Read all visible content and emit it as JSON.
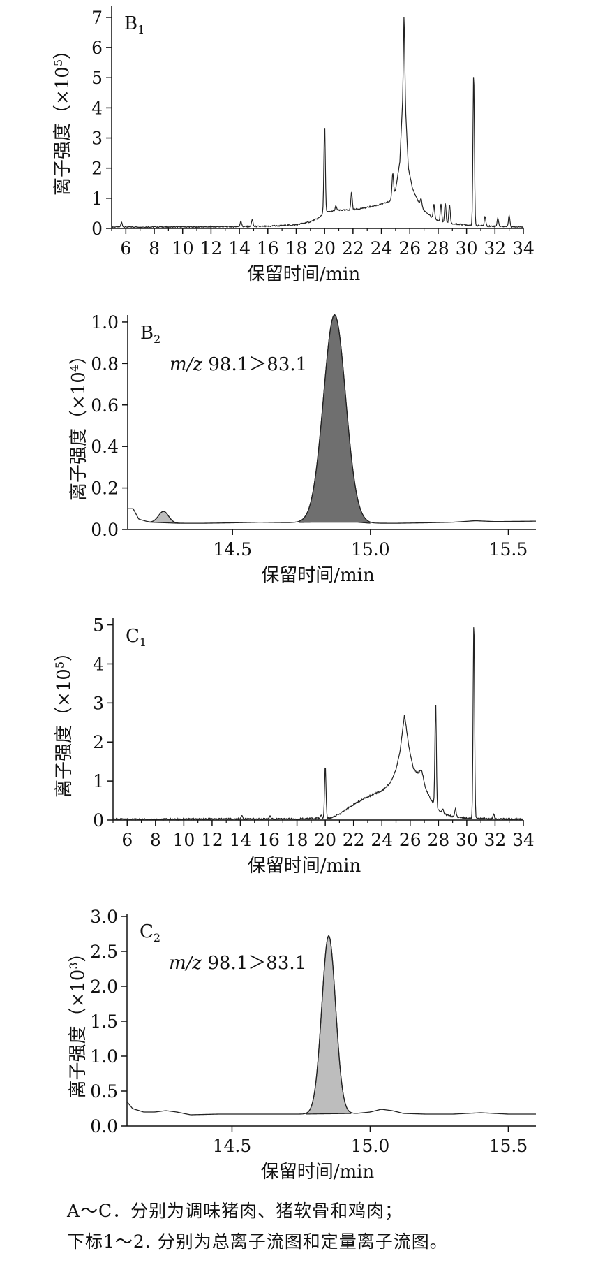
{
  "chart_data": [
    {
      "id": "B1",
      "type": "line",
      "panel_label": {
        "main": "B",
        "sub": "1"
      },
      "annotation": "",
      "xlabel": "保留时间/min",
      "ylabel": "离子强度（×10",
      "ylabel_exp": "5",
      "ylabel_tail": "）",
      "xlim": [
        5,
        34
      ],
      "ylim": [
        0,
        7.3
      ],
      "xticks": [
        6,
        8,
        10,
        12,
        14,
        16,
        18,
        20,
        22,
        24,
        26,
        28,
        30,
        32,
        34
      ],
      "yticks": [
        0,
        1,
        2,
        3,
        4,
        5,
        6,
        7
      ],
      "tick_decimals": {
        "x": 0,
        "y": 0
      },
      "fill": "none",
      "baseline": [
        [
          5.0,
          0.05
        ],
        [
          6.0,
          0.05
        ],
        [
          10,
          0.05
        ],
        [
          14,
          0.06
        ],
        [
          16,
          0.07
        ],
        [
          18,
          0.12
        ],
        [
          19,
          0.22
        ],
        [
          19.6,
          0.35
        ],
        [
          19.9,
          0.5
        ],
        [
          20.2,
          0.55
        ],
        [
          21,
          0.6
        ],
        [
          22,
          0.62
        ],
        [
          23,
          0.7
        ],
        [
          24,
          0.8
        ],
        [
          24.6,
          0.9
        ],
        [
          25.0,
          1.3
        ],
        [
          25.3,
          2.2
        ],
        [
          25.5,
          4.3
        ],
        [
          25.6,
          7.3
        ],
        [
          25.7,
          4.0
        ],
        [
          25.9,
          2.0
        ],
        [
          26.2,
          1.3
        ],
        [
          26.6,
          0.9
        ],
        [
          27.0,
          0.6
        ],
        [
          27.6,
          0.35
        ],
        [
          28.2,
          0.22
        ],
        [
          29,
          0.15
        ],
        [
          30,
          0.12
        ],
        [
          31,
          0.09
        ],
        [
          32,
          0.07
        ],
        [
          33,
          0.06
        ],
        [
          34,
          0.05
        ]
      ],
      "spikes": [
        [
          5.7,
          0.2
        ],
        [
          14.1,
          0.25
        ],
        [
          14.9,
          0.3
        ],
        [
          16.4,
          0.1
        ],
        [
          19.8,
          0.4
        ],
        [
          20.0,
          3.45
        ],
        [
          20.8,
          0.75
        ],
        [
          21.9,
          1.2
        ],
        [
          24.8,
          1.85
        ],
        [
          26.3,
          1.2
        ],
        [
          26.8,
          1.0
        ],
        [
          27.7,
          0.8
        ],
        [
          28.2,
          0.8
        ],
        [
          28.5,
          0.85
        ],
        [
          28.8,
          0.8
        ],
        [
          30.5,
          5.15
        ],
        [
          31.3,
          0.4
        ],
        [
          32.2,
          0.35
        ],
        [
          33.0,
          0.45
        ]
      ]
    },
    {
      "id": "B2",
      "type": "area",
      "panel_label": {
        "main": "B",
        "sub": "2"
      },
      "annotation": "98.1＞83.1",
      "annotation_prefix": "m/z",
      "xlabel": "保留时间/min",
      "ylabel": "离子强度（×10",
      "ylabel_exp": "4",
      "ylabel_tail": "）",
      "xlim": [
        14.12,
        15.6
      ],
      "ylim": [
        0,
        1.02
      ],
      "xticks": [
        14.5,
        15.0,
        15.5
      ],
      "yticks": [
        0,
        0.2,
        0.4,
        0.6,
        0.8,
        1.0
      ],
      "tick_decimals": {
        "x": 1,
        "y": 1
      },
      "fill": "#6f6f6f",
      "baseline": [
        [
          14.12,
          0.1
        ],
        [
          14.14,
          0.1
        ],
        [
          14.16,
          0.05
        ],
        [
          14.2,
          0.035
        ],
        [
          14.3,
          0.03
        ],
        [
          14.4,
          0.03
        ],
        [
          14.5,
          0.032
        ],
        [
          14.6,
          0.035
        ],
        [
          14.7,
          0.033
        ],
        [
          14.8,
          0.035
        ],
        [
          14.95,
          0.035
        ],
        [
          15.0,
          0.03
        ],
        [
          15.1,
          0.03
        ],
        [
          15.2,
          0.032
        ],
        [
          15.3,
          0.035
        ],
        [
          15.38,
          0.042
        ],
        [
          15.45,
          0.038
        ],
        [
          15.6,
          0.04
        ]
      ],
      "peaks": [
        {
          "center": 14.87,
          "height": 1.0,
          "width": 0.04,
          "fill": "#6f6f6f"
        },
        {
          "center": 14.25,
          "height": 0.055,
          "width": 0.018,
          "fill": "#bdbdbd"
        }
      ]
    },
    {
      "id": "C1",
      "type": "line",
      "panel_label": {
        "main": "C",
        "sub": "1"
      },
      "annotation": "",
      "xlabel": "保留时间/min",
      "ylabel": "离子强度（×10",
      "ylabel_exp": "5",
      "ylabel_tail": "）",
      "xlim": [
        5,
        34
      ],
      "ylim": [
        0,
        5.1
      ],
      "xticks": [
        6,
        8,
        10,
        12,
        14,
        16,
        18,
        20,
        22,
        24,
        26,
        28,
        30,
        32,
        34
      ],
      "yticks": [
        0,
        1,
        2,
        3,
        4,
        5
      ],
      "tick_decimals": {
        "x": 0,
        "y": 0
      },
      "fill": "none",
      "baseline": [
        [
          5.0,
          0.02
        ],
        [
          10,
          0.02
        ],
        [
          14,
          0.03
        ],
        [
          18,
          0.03
        ],
        [
          19.5,
          0.04
        ],
        [
          20.3,
          0.05
        ],
        [
          21,
          0.15
        ],
        [
          22,
          0.4
        ],
        [
          23,
          0.6
        ],
        [
          24,
          0.75
        ],
        [
          24.6,
          0.95
        ],
        [
          25.0,
          1.3
        ],
        [
          25.3,
          1.8
        ],
        [
          25.6,
          2.7
        ],
        [
          25.9,
          1.9
        ],
        [
          26.2,
          1.35
        ],
        [
          26.5,
          1.2
        ],
        [
          26.8,
          1.3
        ],
        [
          27.1,
          0.8
        ],
        [
          27.5,
          0.5
        ],
        [
          28,
          0.25
        ],
        [
          28.6,
          0.12
        ],
        [
          29.5,
          0.06
        ],
        [
          30.5,
          0.04
        ],
        [
          32,
          0.03
        ],
        [
          34,
          0.02
        ]
      ],
      "spikes": [
        [
          14.1,
          0.12
        ],
        [
          16.1,
          0.1
        ],
        [
          19.7,
          0.12
        ],
        [
          20.0,
          1.4
        ],
        [
          27.8,
          3.05
        ],
        [
          28.3,
          0.3
        ],
        [
          29.2,
          0.3
        ],
        [
          30.5,
          5.1
        ],
        [
          31.9,
          0.15
        ]
      ]
    },
    {
      "id": "C2",
      "type": "area",
      "panel_label": {
        "main": "C",
        "sub": "2"
      },
      "annotation": "98.1＞83.1",
      "annotation_prefix": "m/z",
      "xlabel": "保留时间/min",
      "ylabel": "离子强度（×10",
      "ylabel_exp": "3",
      "ylabel_tail": "）",
      "xlim": [
        14.12,
        15.6
      ],
      "ylim": [
        0,
        3.0
      ],
      "xticks": [
        14.5,
        15.0,
        15.5
      ],
      "yticks": [
        0,
        0.5,
        1.0,
        1.5,
        2.0,
        2.5,
        3.0
      ],
      "tick_decimals": {
        "x": 1,
        "y": 1
      },
      "fill": "#bdbdbd",
      "baseline": [
        [
          14.12,
          0.35
        ],
        [
          14.14,
          0.25
        ],
        [
          14.18,
          0.2
        ],
        [
          14.22,
          0.2
        ],
        [
          14.26,
          0.22
        ],
        [
          14.3,
          0.2
        ],
        [
          14.35,
          0.16
        ],
        [
          14.45,
          0.17
        ],
        [
          14.6,
          0.17
        ],
        [
          14.75,
          0.17
        ],
        [
          14.95,
          0.18
        ],
        [
          15.0,
          0.2
        ],
        [
          15.04,
          0.24
        ],
        [
          15.08,
          0.22
        ],
        [
          15.12,
          0.18
        ],
        [
          15.2,
          0.17
        ],
        [
          15.3,
          0.17
        ],
        [
          15.4,
          0.19
        ],
        [
          15.5,
          0.17
        ],
        [
          15.6,
          0.17
        ]
      ],
      "peaks": [
        {
          "center": 14.85,
          "height": 2.55,
          "width": 0.025,
          "fill": "#bdbdbd"
        }
      ]
    }
  ],
  "caption": {
    "line1": "A～C．分别为调味猪肉、猪软骨和鸡肉；",
    "line2": "下标1～2. 分别为总离子流图和定量离子流图。"
  }
}
